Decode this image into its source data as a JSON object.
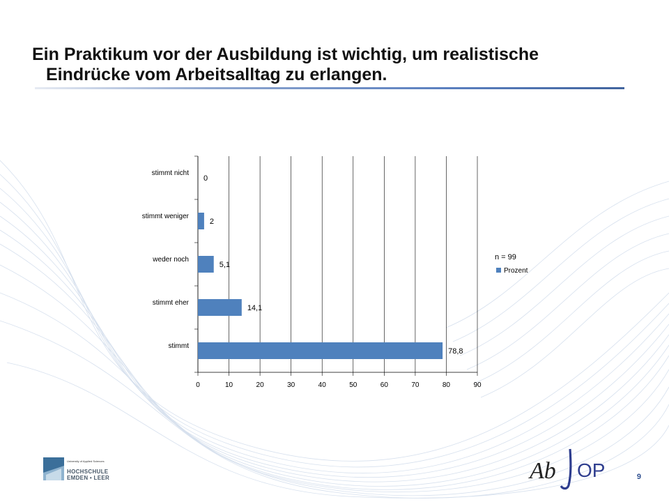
{
  "slide": {
    "title_line1": "Ein Praktikum vor der Ausbildung ist wichtig, um realistische",
    "title_line2": "Eindrücke vom Arbeitsalltag zu erlangen.",
    "page_number": "9"
  },
  "chart_data": {
    "type": "bar",
    "orientation": "horizontal",
    "categories": [
      "stimmt nicht",
      "stimmt weniger",
      "weder noch",
      "stimmt eher",
      "stimmt"
    ],
    "series": [
      {
        "name": "Prozent",
        "values": [
          0,
          2,
          5.1,
          14.1,
          78.8
        ],
        "labels": [
          "0",
          "2",
          "5,1",
          "14,1",
          "78,8"
        ],
        "color": "#4f81bd"
      }
    ],
    "xlim": [
      0,
      90
    ],
    "xticks": [
      "0",
      "10",
      "20",
      "30",
      "40",
      "50",
      "60",
      "70",
      "80",
      "90"
    ],
    "grid": true,
    "legend": {
      "position": "right",
      "note": "n = 99"
    },
    "title": "",
    "xlabel": "",
    "ylabel": ""
  },
  "footer": {
    "hochschule_small": "University of Applied Sciences",
    "hochschule_name1": "HOCHSCHULE",
    "hochschule_name2": "EMDEN • LEER",
    "abjop_part1": "Ab",
    "abjop_part2": "OP"
  },
  "colors": {
    "bar": "#4f81bd",
    "title_rule": "#41649e",
    "swirl": "#c9d6e8"
  }
}
